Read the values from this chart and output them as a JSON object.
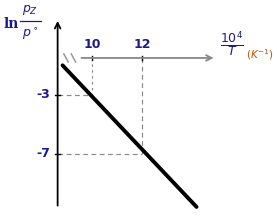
{
  "line_x": [
    8.8,
    14.2
  ],
  "line_y": [
    -1.0,
    -10.6
  ],
  "ref_points": [
    [
      10,
      -3
    ],
    [
      12,
      -7
    ]
  ],
  "line_color": "#000000",
  "dashed_color": "#888888",
  "axis_color": "#888888",
  "y_arrow_color": "#000000",
  "label_color": "#1a1a8c",
  "unit_color": "#c85000",
  "x_ticks": [
    10,
    12
  ],
  "y_ticks": [
    -3,
    -7
  ],
  "xlim": [
    7.0,
    15.5
  ],
  "ylim": [
    -11.5,
    2.5
  ],
  "ox": 8.6,
  "oy": -0.5,
  "break_y": -0.5
}
